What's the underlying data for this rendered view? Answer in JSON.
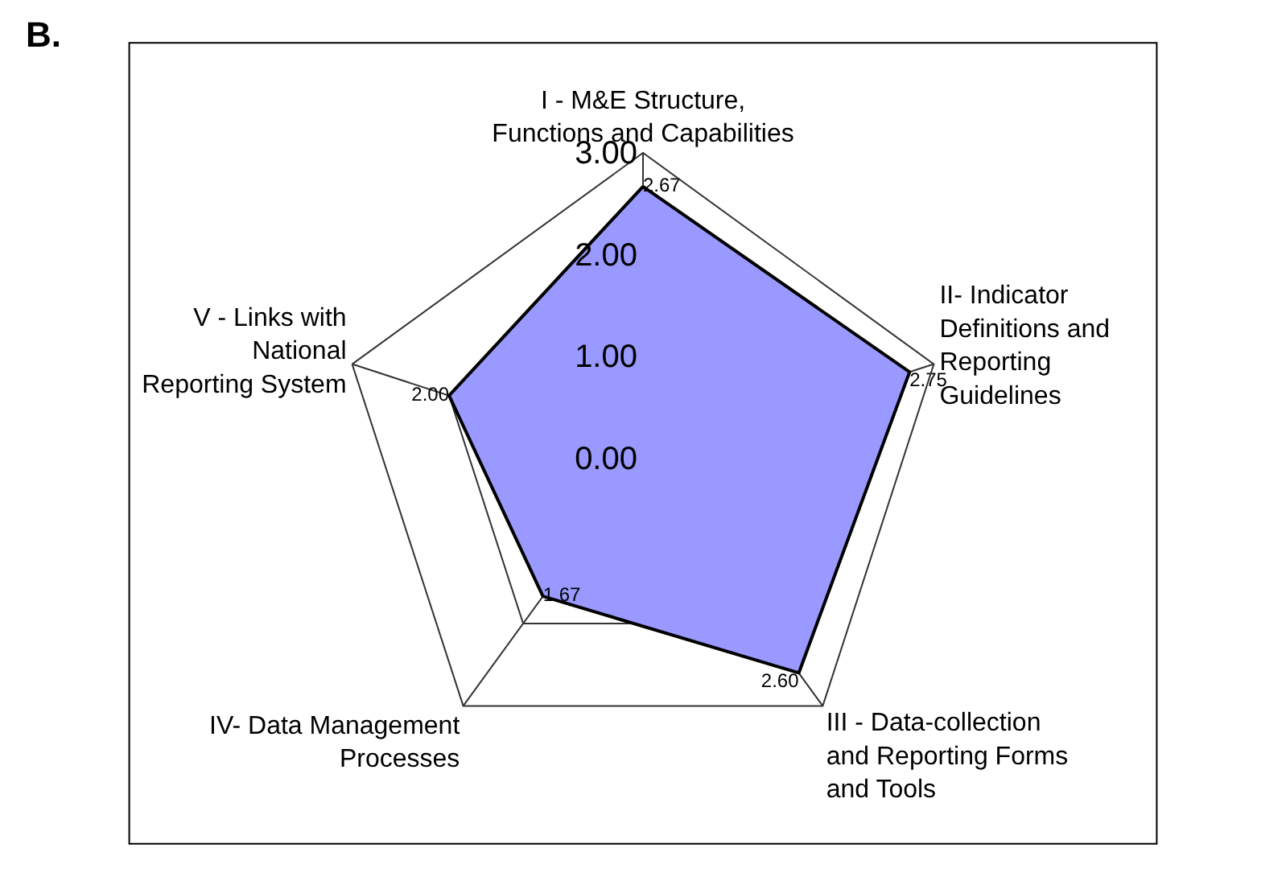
{
  "chart_data": {
    "type": "radar",
    "title": "B.",
    "categories": [
      "I - M&E Structure,\nFunctions and Capabilities",
      "II- Indicator\nDefinitions and\nReporting\nGuidelines",
      "III - Data-collection\nand Reporting Forms\nand Tools",
      "IV- Data Management\nProcesses",
      "V - Links with\nNational\nReporting System"
    ],
    "series": [
      {
        "color": "#9999ff",
        "values": [
          2.67,
          2.75,
          2.6,
          1.67,
          2.0
        ],
        "value_labels": [
          "2.67",
          "2.75",
          "2.60",
          "1.67",
          "2.00"
        ]
      }
    ],
    "ylim": [
      0,
      3
    ],
    "yticks": [
      {
        "value": 0,
        "label": "0.00"
      },
      {
        "value": 1,
        "label": "1.00"
      },
      {
        "value": 2,
        "label": "2.00"
      },
      {
        "value": 3,
        "label": "3.00"
      }
    ],
    "grid": true
  }
}
